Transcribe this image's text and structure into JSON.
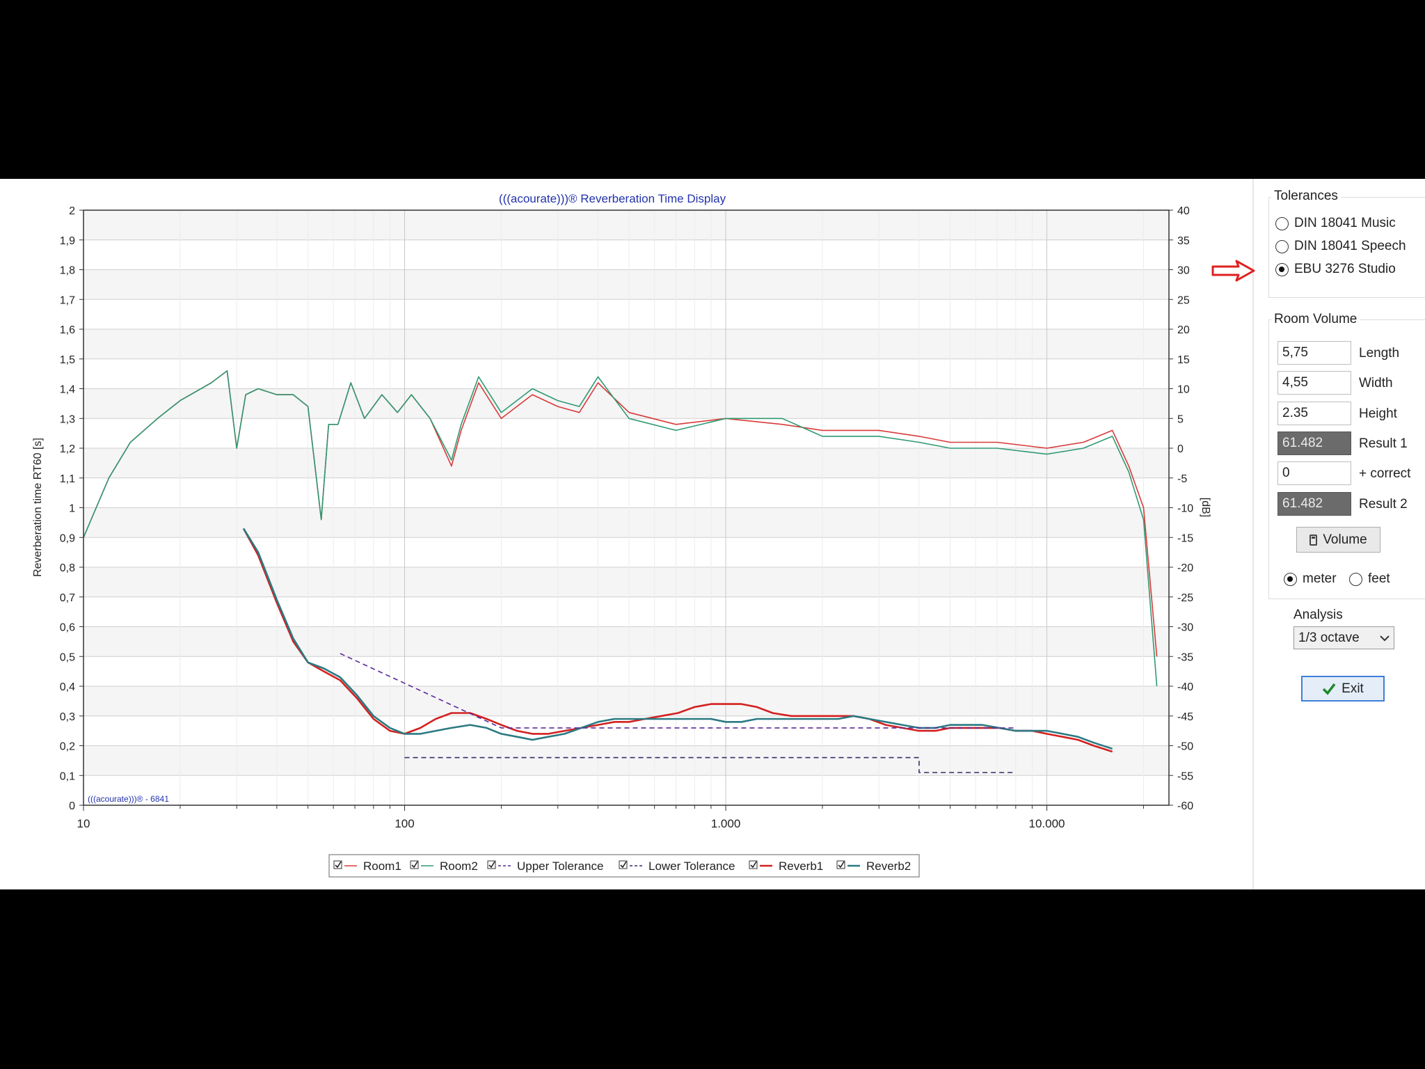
{
  "chart_data": {
    "type": "line",
    "title": "(((acourate)))® Reverberation Time Display",
    "watermark": "(((acourate)))® - 6841",
    "xlabel": "",
    "ylabel_left": "Reverberation time RT60 [s]",
    "ylabel_right": "[dB]",
    "x_scale": "log",
    "xlim": [
      10,
      24000
    ],
    "ylim_left": [
      0,
      2
    ],
    "ylim_right": [
      -60,
      40
    ],
    "grid": true,
    "x_ticks": [
      10,
      100,
      1000,
      10000
    ],
    "x_tick_labels": [
      "10",
      "100",
      "1.000",
      "10.000"
    ],
    "y_left_ticks": [
      "0",
      "0,1",
      "0,2",
      "0,3",
      "0,4",
      "0,5",
      "0,6",
      "0,7",
      "0,8",
      "0,9",
      "1",
      "1,1",
      "1,2",
      "1,3",
      "1,4",
      "1,5",
      "1,6",
      "1,7",
      "1,8",
      "1,9",
      "2"
    ],
    "y_right_ticks": [
      "-60",
      "-55",
      "-50",
      "-45",
      "-40",
      "-35",
      "-30",
      "-25",
      "-20",
      "-15",
      "-10",
      "-5",
      "0",
      "5",
      "10",
      "15",
      "20",
      "25",
      "30",
      "35",
      "40"
    ],
    "legend_placement": "bottom",
    "series": [
      {
        "name": "Room1",
        "axis": "right",
        "color": "#d93a3a",
        "x": [
          10,
          12,
          14,
          17,
          20,
          25,
          28,
          30,
          32,
          35,
          40,
          45,
          50,
          55,
          58,
          62,
          68,
          75,
          85,
          95,
          105,
          120,
          140,
          150,
          170,
          200,
          250,
          300,
          350,
          400,
          500,
          700,
          1000,
          1500,
          2000,
          3000,
          4000,
          5000,
          7000,
          10000,
          13000,
          16000,
          18000,
          20000,
          22000
        ],
        "y": [
          -15,
          -5,
          1,
          5,
          8,
          11,
          13,
          0,
          9,
          10,
          9,
          9,
          7,
          -12,
          4,
          4,
          11,
          5,
          9,
          6,
          9,
          5,
          -3,
          3,
          11,
          5,
          9,
          7,
          6,
          11,
          6,
          4,
          5,
          4,
          3,
          3,
          2,
          1,
          1,
          0,
          1,
          3,
          -3,
          -10,
          -35
        ]
      },
      {
        "name": "Room2",
        "axis": "right",
        "color": "#2f9a72",
        "x": [
          10,
          12,
          14,
          17,
          20,
          25,
          28,
          30,
          32,
          35,
          40,
          45,
          50,
          55,
          58,
          62,
          68,
          75,
          85,
          95,
          105,
          120,
          140,
          150,
          170,
          200,
          250,
          300,
          350,
          400,
          500,
          700,
          1000,
          1500,
          2000,
          3000,
          4000,
          5000,
          7000,
          10000,
          13000,
          16000,
          18000,
          20000,
          22000
        ],
        "y": [
          -15,
          -5,
          1,
          5,
          8,
          11,
          13,
          0,
          9,
          10,
          9,
          9,
          7,
          -12,
          4,
          4,
          11,
          5,
          9,
          6,
          9,
          5,
          -2,
          4,
          12,
          6,
          10,
          8,
          7,
          12,
          5,
          3,
          5,
          5,
          2,
          2,
          1,
          0,
          0,
          -1,
          0,
          2,
          -4,
          -12,
          -40
        ]
      },
      {
        "name": "Upper Tolerance",
        "axis": "left",
        "color": "#5a2a9a",
        "dash": true,
        "x": [
          63,
          200,
          8000
        ],
        "y": [
          0.51,
          0.26,
          0.26
        ]
      },
      {
        "name": "Lower Tolerance",
        "axis": "left",
        "color": "#3a2a6a",
        "dash": true,
        "x": [
          100,
          4000,
          4000,
          8000
        ],
        "y": [
          0.16,
          0.16,
          0.11,
          0.11
        ]
      },
      {
        "name": "Reverb1",
        "axis": "left",
        "color": "#d42020",
        "x": [
          31.5,
          35,
          40,
          45,
          50,
          56,
          63,
          71,
          80,
          90,
          100,
          112,
          125,
          140,
          160,
          180,
          200,
          224,
          250,
          280,
          315,
          355,
          400,
          450,
          500,
          560,
          630,
          710,
          800,
          900,
          1000,
          1120,
          1250,
          1400,
          1600,
          1800,
          2000,
          2240,
          2500,
          2800,
          3150,
          3550,
          4000,
          4500,
          5000,
          5600,
          6300,
          7100,
          8000,
          9000,
          10000,
          11200,
          12500,
          14000,
          16000
        ],
        "y": [
          0.93,
          0.84,
          0.68,
          0.55,
          0.48,
          0.45,
          0.42,
          0.36,
          0.29,
          0.25,
          0.24,
          0.26,
          0.29,
          0.31,
          0.31,
          0.29,
          0.27,
          0.25,
          0.24,
          0.24,
          0.25,
          0.26,
          0.27,
          0.28,
          0.28,
          0.29,
          0.3,
          0.31,
          0.33,
          0.34,
          0.34,
          0.34,
          0.33,
          0.31,
          0.3,
          0.3,
          0.3,
          0.3,
          0.3,
          0.29,
          0.27,
          0.26,
          0.25,
          0.25,
          0.26,
          0.26,
          0.26,
          0.26,
          0.25,
          0.25,
          0.24,
          0.23,
          0.22,
          0.2,
          0.18
        ]
      },
      {
        "name": "Reverb2",
        "axis": "left",
        "color": "#2a7a82",
        "x": [
          31.5,
          35,
          40,
          45,
          50,
          56,
          63,
          71,
          80,
          90,
          100,
          112,
          125,
          140,
          160,
          180,
          200,
          224,
          250,
          280,
          315,
          355,
          400,
          450,
          500,
          560,
          630,
          710,
          800,
          900,
          1000,
          1120,
          1250,
          1400,
          1600,
          1800,
          2000,
          2240,
          2500,
          2800,
          3150,
          3550,
          4000,
          4500,
          5000,
          5600,
          6300,
          7100,
          8000,
          9000,
          10000,
          11200,
          12500,
          14000,
          16000
        ],
        "y": [
          0.93,
          0.85,
          0.69,
          0.56,
          0.48,
          0.46,
          0.43,
          0.37,
          0.3,
          0.26,
          0.24,
          0.24,
          0.25,
          0.26,
          0.27,
          0.26,
          0.24,
          0.23,
          0.22,
          0.23,
          0.24,
          0.26,
          0.28,
          0.29,
          0.29,
          0.29,
          0.29,
          0.29,
          0.29,
          0.29,
          0.28,
          0.28,
          0.29,
          0.29,
          0.29,
          0.29,
          0.29,
          0.29,
          0.3,
          0.29,
          0.28,
          0.27,
          0.26,
          0.26,
          0.27,
          0.27,
          0.27,
          0.26,
          0.25,
          0.25,
          0.25,
          0.24,
          0.23,
          0.21,
          0.19
        ]
      }
    ]
  },
  "legend": {
    "items": [
      {
        "label": "Room1",
        "color": "#d93a3a",
        "dash": false
      },
      {
        "label": "Room2",
        "color": "#2f9a72",
        "dash": false
      },
      {
        "label": "Upper Tolerance",
        "color": "#5a2a9a",
        "dash": true
      },
      {
        "label": "Lower Tolerance",
        "color": "#3a2a6a",
        "dash": true
      },
      {
        "label": "Reverb1",
        "color": "#d42020",
        "dash": false
      },
      {
        "label": "Reverb2",
        "color": "#2a7a82",
        "dash": false
      }
    ]
  },
  "panel": {
    "tolerances": {
      "title": "Tolerances",
      "options": [
        {
          "label": "DIN 18041 Music",
          "selected": false
        },
        {
          "label": "DIN 18041 Speech",
          "selected": false
        },
        {
          "label": "EBU 3276 Studio",
          "selected": true
        }
      ]
    },
    "room_volume": {
      "title": "Room Volume",
      "length_value": "5,75",
      "length_label": "Length",
      "width_value": "4,55",
      "width_label": "Width",
      "height_value": "2.35",
      "height_label": "Height",
      "result1_value": "61.482",
      "result1_label": "Result 1",
      "correct_value": "0",
      "correct_label": "+ correct",
      "result2_value": "61.482",
      "result2_label": "Result 2",
      "volume_button": "Volume",
      "unit_meter": "meter",
      "unit_feet": "feet",
      "unit_selected": "meter"
    },
    "analysis": {
      "label": "Analysis",
      "selected": "1/3 octave"
    },
    "exit_button": "Exit"
  },
  "colors": {
    "annotation_arrow": "#e02020",
    "title_text": "#2233aa"
  }
}
